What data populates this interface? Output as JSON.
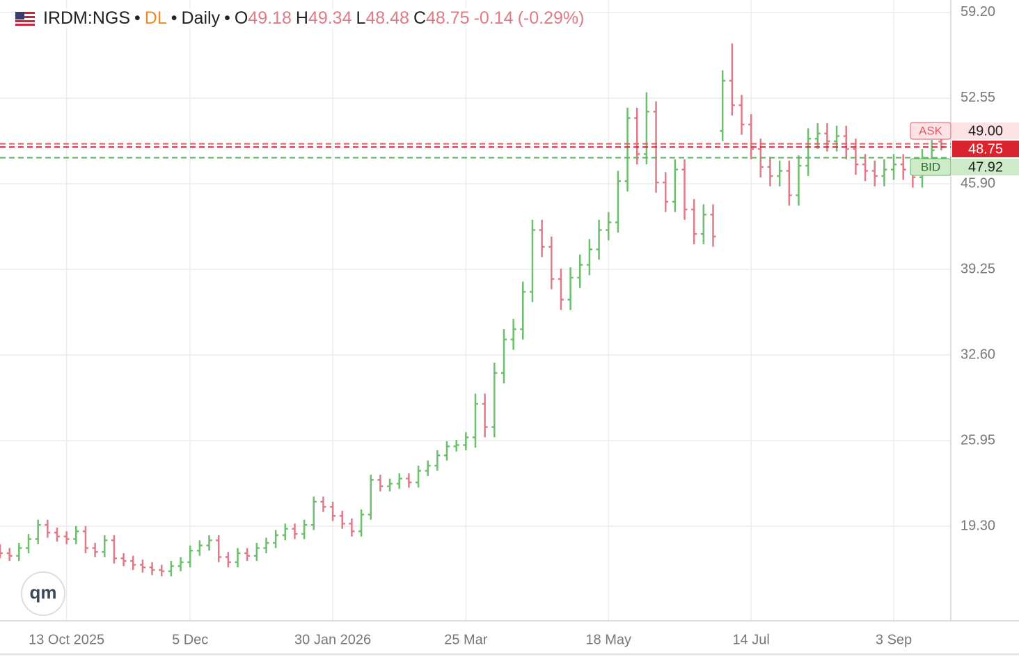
{
  "chart_data": {
    "type": "ohlc",
    "symbol": "IRDM:NGS",
    "source": "DL",
    "interval": "Daily",
    "ohlc_labels": [
      "O",
      "H",
      "L",
      "C"
    ],
    "change": -0.14,
    "change_pct": {
      "value": -0.29,
      "label": "(-0.29%)"
    },
    "logo": "qm",
    "up_color": "#6cbf6c",
    "down_color": "#e07a86",
    "xlim": [
      0,
      100
    ],
    "xticks": [
      {
        "value": 7,
        "label": "13 Oct 2025"
      },
      {
        "value": 20,
        "label": "5 Dec"
      },
      {
        "value": 35,
        "label": "30 Jan 2026"
      },
      {
        "value": 49,
        "label": "25 Mar"
      },
      {
        "value": 64,
        "label": "18 May"
      },
      {
        "value": 79,
        "label": "14 Jul"
      },
      {
        "value": 94,
        "label": "3 Sep"
      }
    ],
    "ylim": [
      11.95,
      60.17
    ],
    "yticks": [
      {
        "value": 59.2,
        "label": "59.20"
      },
      52.55,
      {
        "value": 45.9,
        "label": "45.90"
      },
      39.25,
      {
        "value": 32.6,
        "label": "32.60"
      },
      25.95,
      {
        "value": 19.3,
        "label": "19.30"
      }
    ],
    "grid": true,
    "quote_lines": [
      {
        "name": "ASK",
        "value": {
          "value": 49,
          "label": "49.00"
        },
        "color": "#e05a6a"
      },
      {
        "name": "BID",
        "value": 47.92,
        "color": "#5cb85c"
      }
    ],
    "last_color": "#d9232f",
    "open": [
      17.5,
      17.2,
      17.0,
      17.6,
      18.3,
      19.4,
      18.8,
      18.5,
      18.3,
      18.9,
      17.6,
      17.3,
      18.2,
      16.8,
      16.6,
      16.3,
      16.1,
      15.9,
      15.8,
      16.2,
      16.5,
      17.4,
      17.8,
      18.2,
      16.9,
      16.5,
      17.2,
      17.0,
      17.6,
      18.0,
      18.6,
      19.1,
      18.7,
      19.4,
      21.2,
      20.8,
      20.1,
      19.5,
      18.9,
      20.2,
      22.9,
      22.4,
      22.6,
      23.0,
      22.7,
      23.6,
      24.0,
      24.8,
      25.5,
      25.6,
      26.2,
      28.8,
      27.0,
      31.2,
      33.8,
      34.6,
      37.5,
      42.3,
      41.0,
      38.5,
      36.9,
      38.6,
      39.6,
      40.8,
      42.3,
      42.9,
      46.1,
      51.0,
      48.2,
      51.5,
      46.0,
      44.5,
      47.0,
      43.9,
      42.0,
      43.5,
      50.0,
      53.9,
      52.0,
      50.5,
      48.6,
      47.2,
      46.5,
      46.9,
      45.0,
      47.3,
      49.4,
      49.8,
      49.2,
      49.6,
      48.6,
      47.4,
      46.9,
      46.5,
      47.0,
      47.4,
      47.0,
      46.4,
      47.8,
      49.18
    ],
    "high": [
      17.9,
      17.6,
      18.0,
      18.7,
      19.8,
      19.8,
      19.2,
      18.9,
      19.3,
      19.3,
      18.0,
      18.6,
      18.6,
      17.2,
      17.0,
      16.7,
      16.5,
      16.3,
      16.6,
      16.9,
      17.8,
      18.2,
      18.6,
      18.6,
      17.3,
      17.6,
      17.6,
      18.0,
      18.4,
      19.0,
      19.5,
      19.5,
      19.8,
      21.6,
      21.6,
      21.2,
      20.5,
      19.9,
      20.6,
      23.3,
      23.3,
      23.0,
      23.4,
      23.4,
      24.0,
      24.4,
      25.2,
      25.9,
      26.0,
      26.6,
      29.6,
      29.6,
      32.0,
      34.6,
      35.4,
      38.3,
      43.1,
      43.1,
      41.8,
      39.3,
      39.4,
      40.4,
      41.6,
      43.1,
      43.7,
      46.9,
      51.8,
      51.8,
      53.0,
      52.3,
      46.8,
      47.8,
      47.8,
      44.7,
      44.3,
      44.3,
      54.7,
      56.8,
      52.8,
      51.3,
      49.4,
      48.0,
      47.7,
      47.7,
      48.1,
      50.2,
      50.6,
      50.6,
      50.4,
      50.4,
      49.4,
      48.2,
      47.7,
      47.8,
      48.2,
      48.2,
      47.8,
      48.6,
      49.3,
      49.34
    ],
    "low": [
      16.8,
      16.6,
      16.6,
      17.2,
      17.9,
      18.4,
      18.1,
      17.9,
      17.9,
      17.2,
      16.9,
      16.9,
      16.4,
      16.2,
      15.9,
      15.7,
      15.5,
      15.4,
      15.4,
      15.8,
      16.1,
      17.0,
      17.4,
      16.5,
      16.1,
      16.1,
      16.6,
      16.6,
      17.2,
      17.6,
      18.2,
      18.3,
      18.3,
      19.0,
      20.4,
      19.7,
      19.1,
      18.5,
      18.5,
      19.8,
      22.0,
      22.0,
      22.2,
      22.3,
      22.3,
      23.2,
      23.6,
      24.4,
      25.1,
      25.2,
      25.4,
      26.2,
      26.2,
      30.4,
      33.0,
      33.8,
      36.7,
      40.2,
      37.7,
      36.1,
      36.1,
      37.8,
      38.8,
      40.0,
      41.5,
      42.1,
      45.3,
      47.4,
      47.4,
      45.2,
      43.7,
      43.7,
      43.1,
      41.2,
      41.2,
      41.0,
      49.2,
      51.2,
      49.7,
      47.8,
      46.4,
      45.7,
      45.7,
      44.2,
      44.2,
      46.5,
      48.6,
      48.4,
      48.4,
      47.8,
      46.6,
      46.1,
      45.7,
      45.7,
      46.2,
      46.2,
      45.6,
      45.6,
      47.0,
      48.48
    ],
    "close": [
      17.2,
      17.0,
      17.6,
      18.3,
      19.4,
      18.8,
      18.5,
      18.3,
      18.9,
      17.6,
      17.3,
      18.2,
      16.8,
      16.6,
      16.3,
      16.1,
      15.9,
      15.8,
      16.2,
      16.5,
      17.4,
      17.8,
      18.2,
      16.9,
      16.5,
      17.2,
      17.0,
      17.6,
      18.0,
      18.6,
      19.1,
      18.7,
      19.4,
      21.2,
      20.8,
      20.1,
      19.5,
      18.9,
      20.2,
      22.9,
      22.4,
      22.6,
      23.0,
      22.7,
      23.6,
      24.0,
      24.8,
      25.5,
      25.6,
      26.2,
      28.8,
      27.0,
      31.2,
      33.8,
      34.6,
      37.5,
      42.3,
      41.0,
      38.5,
      36.9,
      38.6,
      39.6,
      40.8,
      42.3,
      42.9,
      46.1,
      51.0,
      48.2,
      51.5,
      46.0,
      44.5,
      47.0,
      43.9,
      42.0,
      43.5,
      41.8,
      53.9,
      52.0,
      50.5,
      48.6,
      47.2,
      46.5,
      46.9,
      45.0,
      47.3,
      49.4,
      49.8,
      49.2,
      49.6,
      48.6,
      47.4,
      46.9,
      46.5,
      47.0,
      47.4,
      47.0,
      46.4,
      47.8,
      48.5,
      48.75
    ]
  }
}
